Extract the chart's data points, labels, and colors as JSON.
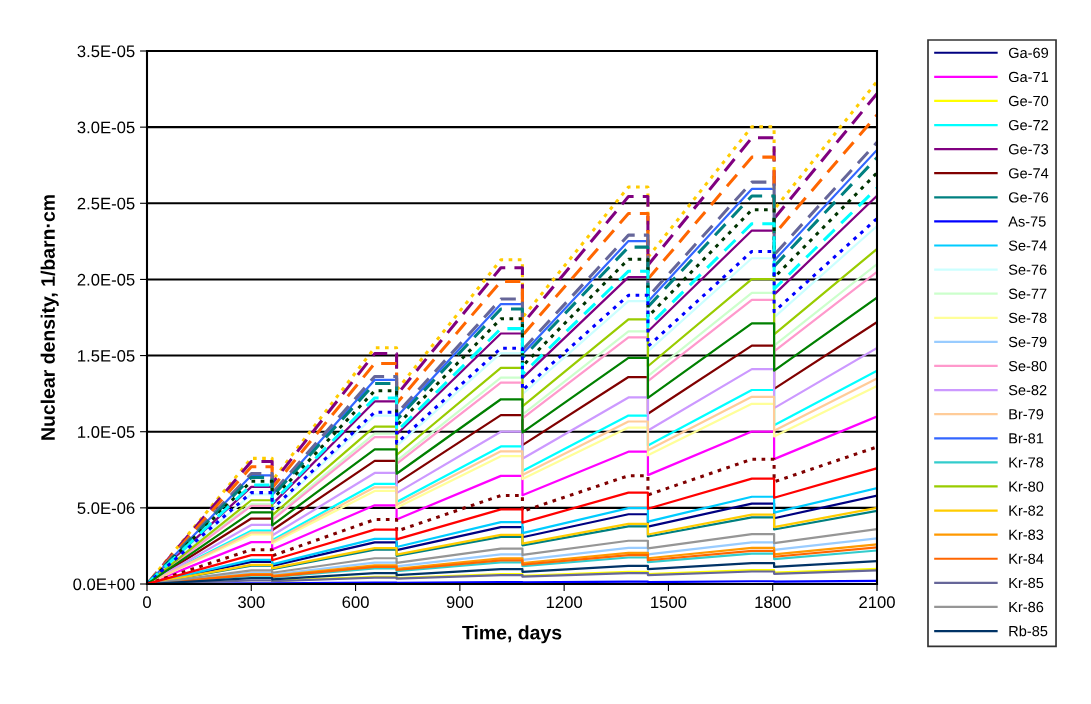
{
  "chart_data": {
    "type": "line",
    "xlabel": "Time, days",
    "ylabel": "Nuclear density, 1/barn·cm",
    "x": [
      0,
      300,
      360,
      360,
      655,
      718,
      718,
      1018,
      1080,
      1080,
      1385,
      1441,
      1441,
      1740,
      1804,
      1804,
      2100
    ],
    "xlim": [
      0,
      2100
    ],
    "xticks": [
      0,
      300,
      600,
      900,
      1200,
      1500,
      1800,
      2100
    ],
    "ylim": [
      0,
      3.5e-05
    ],
    "yticks": [
      {
        "value": 0,
        "label": "0.0E+00"
      },
      {
        "value": 5e-06,
        "label": "5.0E-06"
      },
      {
        "value": 1e-05,
        "label": "1.0E-05"
      },
      {
        "value": 1.5e-05,
        "label": "1.5E-05"
      },
      {
        "value": 2e-05,
        "label": "2.0E-05"
      },
      {
        "value": 2.5e-05,
        "label": "2.5E-05"
      },
      {
        "value": 3e-05,
        "label": "3.0E-05"
      },
      {
        "value": 3.5e-05,
        "label": "3.5E-05"
      }
    ],
    "grid": "y",
    "legend": "right",
    "marker": "none",
    "series": [
      {
        "name": "Ga-69",
        "color": "#000080",
        "line_style": "solid",
        "values": [
          0,
          1.45e-06,
          1.45e-06,
          1.19e-06,
          2.73e-06,
          2.73e-06,
          2.23e-06,
          3.74e-06,
          3.74e-06,
          3.07e-06,
          4.58e-06,
          4.58e-06,
          3.77e-06,
          5.28e-06,
          5.28e-06,
          4.32e-06,
          5.8e-06
        ]
      },
      {
        "name": "Ga-71",
        "color": "#ff00ff",
        "line_style": "solid",
        "values": [
          0,
          2.75e-06,
          2.75e-06,
          2.26e-06,
          5.17e-06,
          5.17e-06,
          4.24e-06,
          7.1e-06,
          7.1e-06,
          5.83e-06,
          8.69e-06,
          8.69e-06,
          7.15e-06,
          1.001e-05,
          1.001e-05,
          8.2e-06,
          1.1e-05
        ]
      },
      {
        "name": "Ge-70",
        "color": "#ffff00",
        "line_style": "solid",
        "values": [
          null,
          null,
          null,
          2e-07,
          4.7e-07,
          4.7e-07,
          3.9e-07,
          6.5e-07,
          6.5e-07,
          5.3e-07,
          7.9e-07,
          7.9e-07,
          6.5e-07,
          9.1e-07,
          9.1e-07,
          7.5e-07,
          1e-06
        ]
      },
      {
        "name": "Ge-72",
        "color": "#00ffff",
        "line_style": "solid",
        "values": [
          0,
          3.5e-06,
          3.5e-06,
          2.87e-06,
          6.58e-06,
          6.58e-06,
          5.39e-06,
          9.03e-06,
          9.03e-06,
          7.42e-06,
          1.106e-05,
          1.106e-05,
          9.1e-06,
          1.274e-05,
          1.274e-05,
          1.043e-05,
          1.4e-05
        ]
      },
      {
        "name": "Ge-73",
        "color": "#800080",
        "line_style": "solid",
        "values": [
          0,
          6.38e-06,
          6.38e-06,
          5.23e-06,
          1.199e-05,
          1.199e-05,
          9.82e-06,
          1.645e-05,
          1.645e-05,
          1.352e-05,
          2.015e-05,
          2.015e-05,
          1.658e-05,
          2.321e-05,
          2.321e-05,
          1.9e-05,
          2.55e-05
        ]
      },
      {
        "name": "Ge-74",
        "color": "#800000",
        "line_style": "solid",
        "values": [
          0,
          4.3e-06,
          4.3e-06,
          3.53e-06,
          8.08e-06,
          8.08e-06,
          6.62e-06,
          1.109e-05,
          1.109e-05,
          9.12e-06,
          1.359e-05,
          1.359e-05,
          1.118e-05,
          1.565e-05,
          1.565e-05,
          1.281e-05,
          1.72e-05
        ]
      },
      {
        "name": "Ge-76",
        "color": "#008080",
        "line_style": "solid",
        "values": [
          0,
          1.2e-06,
          1.2e-06,
          9.8e-07,
          2.26e-06,
          2.26e-06,
          1.85e-06,
          3.1e-06,
          3.1e-06,
          2.54e-06,
          3.79e-06,
          3.79e-06,
          3.12e-06,
          4.37e-06,
          4.37e-06,
          3.58e-06,
          4.8e-06
        ]
      },
      {
        "name": "As-75",
        "color": "#0000ff",
        "line_style": "solid",
        "values": [
          0,
          5e-08,
          5e-08,
          4e-08,
          9e-08,
          9e-08,
          8e-08,
          1.3e-07,
          1.3e-07,
          1.1e-07,
          1.6e-07,
          1.6e-07,
          1.3e-07,
          1.8e-07,
          1.8e-07,
          1.5e-07,
          2e-07
        ]
      },
      {
        "name": "Se-74",
        "color": "#00ccff",
        "line_style": "solid",
        "values": [
          0,
          1.58e-06,
          1.58e-06,
          1.29e-06,
          2.96e-06,
          2.96e-06,
          2.43e-06,
          4.06e-06,
          4.06e-06,
          3.34e-06,
          4.98e-06,
          4.98e-06,
          4.1e-06,
          5.73e-06,
          5.73e-06,
          4.69e-06,
          6.3e-06
        ]
      },
      {
        "name": "Se-76",
        "color": "#ccffff",
        "line_style": "solid",
        "values": [
          0,
          5.88e-06,
          5.88e-06,
          4.82e-06,
          1.105e-05,
          1.105e-05,
          9.05e-06,
          1.516e-05,
          1.516e-05,
          1.246e-05,
          1.857e-05,
          1.857e-05,
          1.528e-05,
          2.139e-05,
          2.139e-05,
          1.751e-05,
          2.35e-05
        ]
      },
      {
        "name": "Se-77",
        "color": "#ccffcc",
        "line_style": "solid",
        "values": [
          0,
          5.25e-06,
          5.25e-06,
          4.31e-06,
          9.87e-06,
          9.87e-06,
          8.09e-06,
          1.355e-05,
          1.355e-05,
          1.113e-05,
          1.659e-05,
          1.659e-05,
          1.365e-05,
          1.911e-05,
          1.911e-05,
          1.565e-05,
          2.1e-05
        ]
      },
      {
        "name": "Se-78",
        "color": "#ffff99",
        "line_style": "solid",
        "values": [
          0,
          3.25e-06,
          3.25e-06,
          2.67e-06,
          6.11e-06,
          6.11e-06,
          5.01e-06,
          8.39e-06,
          8.39e-06,
          6.89e-06,
          1.027e-05,
          1.027e-05,
          8.45e-06,
          1.183e-05,
          1.183e-05,
          9.69e-06,
          1.3e-05
        ]
      },
      {
        "name": "Se-79",
        "color": "#99ccff",
        "line_style": "solid",
        "values": [
          0,
          7.5e-07,
          7.5e-07,
          6.2e-07,
          1.41e-06,
          1.41e-06,
          1.16e-06,
          1.94e-06,
          1.94e-06,
          1.59e-06,
          2.37e-06,
          2.37e-06,
          1.95e-06,
          2.73e-06,
          2.73e-06,
          2.24e-06,
          3e-06
        ]
      },
      {
        "name": "Se-80",
        "color": "#ff99cc",
        "line_style": "solid",
        "values": [
          0,
          5.13e-06,
          5.13e-06,
          4.2e-06,
          9.64e-06,
          9.64e-06,
          7.89e-06,
          1.322e-05,
          1.322e-05,
          1.087e-05,
          1.62e-05,
          1.62e-05,
          1.333e-05,
          1.866e-05,
          1.866e-05,
          1.527e-05,
          2.05e-05
        ]
      },
      {
        "name": "Se-82",
        "color": "#cc99ff",
        "line_style": "solid",
        "values": [
          0,
          3.88e-06,
          3.88e-06,
          3.18e-06,
          7.29e-06,
          7.29e-06,
          5.97e-06,
          1e-05,
          1e-05,
          8.22e-06,
          1.225e-05,
          1.225e-05,
          1.008e-05,
          1.411e-05,
          1.411e-05,
          1.155e-05,
          1.55e-05
        ]
      },
      {
        "name": "Br-79",
        "color": "#ffcc99",
        "line_style": "solid",
        "values": [
          0,
          3.38e-06,
          3.38e-06,
          2.77e-06,
          6.35e-06,
          6.35e-06,
          5.2e-06,
          8.71e-06,
          8.71e-06,
          7.16e-06,
          1.067e-05,
          1.067e-05,
          8.78e-06,
          1.229e-05,
          1.229e-05,
          1.006e-05,
          1.35e-05
        ]
      },
      {
        "name": "Br-81",
        "color": "#3366ff",
        "line_style": "solid",
        "values": [
          0,
          7.13e-06,
          7.13e-06,
          5.84e-06,
          1.34e-05,
          1.34e-05,
          1.097e-05,
          1.838e-05,
          1.838e-05,
          1.511e-05,
          2.252e-05,
          2.252e-05,
          1.853e-05,
          2.594e-05,
          2.594e-05,
          2.123e-05,
          2.85e-05
        ]
      },
      {
        "name": "Kr-78",
        "color": "#33cccc",
        "line_style": "solid",
        "values": [
          0,
          5.5e-07,
          5.5e-07,
          4.5e-07,
          1.03e-06,
          1.03e-06,
          8.5e-07,
          1.42e-06,
          1.42e-06,
          1.17e-06,
          1.74e-06,
          1.74e-06,
          1.43e-06,
          2e-06,
          2e-06,
          1.64e-06,
          2.2e-06
        ]
      },
      {
        "name": "Kr-80",
        "color": "#99cc00",
        "line_style": "solid",
        "values": [
          0,
          5.5e-06,
          5.5e-06,
          4.51e-06,
          1.034e-05,
          1.034e-05,
          8.47e-06,
          1.419e-05,
          1.419e-05,
          1.166e-05,
          1.738e-05,
          1.738e-05,
          1.43e-05,
          2.002e-05,
          2.002e-05,
          1.639e-05,
          2.2e-05
        ]
      },
      {
        "name": "Kr-82",
        "color": "#ffcc00",
        "line_style": "solid",
        "values": [
          0,
          1.25e-06,
          1.25e-06,
          1.03e-06,
          2.35e-06,
          2.35e-06,
          1.93e-06,
          3.23e-06,
          3.23e-06,
          2.65e-06,
          3.95e-06,
          3.95e-06,
          3.25e-06,
          4.55e-06,
          4.55e-06,
          3.73e-06,
          5e-06
        ]
      },
      {
        "name": "Kr-83",
        "color": "#ff9900",
        "line_style": "solid",
        "values": [
          0,
          6.5e-07,
          6.5e-07,
          5.3e-07,
          1.22e-06,
          1.22e-06,
          1e-06,
          1.68e-06,
          1.68e-06,
          1.38e-06,
          2.05e-06,
          2.05e-06,
          1.69e-06,
          2.37e-06,
          2.37e-06,
          1.94e-06,
          2.6e-06
        ]
      },
      {
        "name": "Kr-84",
        "color": "#ff6600",
        "line_style": "solid",
        "values": [
          0,
          6e-07,
          6e-07,
          4.9e-07,
          1.13e-06,
          1.13e-06,
          9.2e-07,
          1.55e-06,
          1.55e-06,
          1.27e-06,
          1.9e-06,
          1.9e-06,
          1.56e-06,
          2.18e-06,
          2.18e-06,
          1.79e-06,
          2.4e-06
        ]
      },
      {
        "name": "Kr-85",
        "color": "#666699",
        "line_style": "solid",
        "values": [
          0,
          2.3e-07,
          2.3e-07,
          1.8e-07,
          4.2e-07,
          4.2e-07,
          3.5e-07,
          5.8e-07,
          5.8e-07,
          4.8e-07,
          7.1e-07,
          7.1e-07,
          5.9e-07,
          8.2e-07,
          8.2e-07,
          6.7e-07,
          9e-07
        ]
      },
      {
        "name": "Kr-86",
        "color": "#969696",
        "line_style": "solid",
        "values": [
          0,
          9e-07,
          9e-07,
          7.4e-07,
          1.69e-06,
          1.69e-06,
          1.39e-06,
          2.32e-06,
          2.32e-06,
          1.91e-06,
          2.84e-06,
          2.84e-06,
          2.34e-06,
          3.28e-06,
          3.28e-06,
          2.68e-06,
          3.6e-06
        ]
      },
      {
        "name": "Rb-85",
        "color": "#003366",
        "line_style": "solid",
        "values": [
          0,
          3.8e-07,
          3.8e-07,
          3.1e-07,
          7.1e-07,
          7.1e-07,
          5.8e-07,
          9.7e-07,
          9.7e-07,
          8e-07,
          1.19e-06,
          1.19e-06,
          9.8e-07,
          1.37e-06,
          1.37e-06,
          1.12e-06,
          1.5e-06
        ]
      },
      {
        "color": "#ffcc00",
        "line_style": "dotted",
        "values": [
          0,
          8.25e-06,
          8.25e-06,
          6.77e-06,
          1.551e-05,
          1.551e-05,
          1.271e-05,
          2.129e-05,
          2.129e-05,
          1.749e-05,
          2.607e-05,
          2.607e-05,
          2.145e-05,
          3.003e-05,
          3.003e-05,
          2.459e-05,
          3.3e-05
        ]
      },
      {
        "color": "#800080",
        "line_style": "dashed",
        "values": [
          0,
          8.05e-06,
          8.05e-06,
          6.6e-06,
          1.513e-05,
          1.513e-05,
          1.24e-05,
          2.077e-05,
          2.077e-05,
          1.707e-05,
          2.544e-05,
          2.544e-05,
          2.093e-05,
          2.93e-05,
          2.93e-05,
          2.399e-05,
          3.22e-05
        ]
      },
      {
        "color": "#ff6600",
        "line_style": "dashed",
        "values": [
          0,
          7.7e-06,
          7.7e-06,
          6.31e-06,
          1.448e-05,
          1.448e-05,
          1.186e-05,
          1.987e-05,
          1.987e-05,
          1.632e-05,
          2.433e-05,
          2.433e-05,
          2.002e-05,
          2.803e-05,
          2.803e-05,
          2.295e-05,
          3.08e-05
        ]
      },
      {
        "color": "#666699",
        "line_style": "dashed",
        "values": [
          0,
          7.25e-06,
          7.25e-06,
          5.95e-06,
          1.363e-05,
          1.363e-05,
          1.117e-05,
          1.871e-05,
          1.871e-05,
          1.537e-05,
          2.291e-05,
          2.291e-05,
          1.885e-05,
          2.639e-05,
          2.639e-05,
          2.161e-05,
          2.9e-05
        ]
      },
      {
        "color": "#008080",
        "line_style": "dashed",
        "values": [
          0,
          7e-06,
          7e-06,
          5.74e-06,
          1.316e-05,
          1.316e-05,
          1.078e-05,
          1.806e-05,
          1.806e-05,
          1.484e-05,
          2.212e-05,
          2.212e-05,
          1.82e-05,
          2.548e-05,
          2.548e-05,
          2.086e-05,
          2.8e-05
        ]
      },
      {
        "color": "#003300",
        "line_style": "dotted",
        "values": [
          0,
          6.75e-06,
          6.75e-06,
          5.54e-06,
          1.269e-05,
          1.269e-05,
          1.04e-05,
          1.742e-05,
          1.742e-05,
          1.431e-05,
          2.133e-05,
          2.133e-05,
          1.755e-05,
          2.457e-05,
          2.457e-05,
          2.012e-05,
          2.7e-05
        ]
      },
      {
        "color": "#00ffff",
        "line_style": "dashed",
        "values": [
          0,
          6.5e-06,
          6.5e-06,
          5.33e-06,
          1.222e-05,
          1.222e-05,
          1.001e-05,
          1.677e-05,
          1.677e-05,
          1.378e-05,
          2.054e-05,
          2.054e-05,
          1.69e-05,
          2.366e-05,
          2.366e-05,
          1.937e-05,
          2.6e-05
        ]
      },
      {
        "color": "#0000ff",
        "line_style": "dotted",
        "values": [
          0,
          6e-06,
          6e-06,
          4.92e-06,
          1.128e-05,
          1.128e-05,
          9.24e-06,
          1.548e-05,
          1.548e-05,
          1.272e-05,
          1.896e-05,
          1.896e-05,
          1.56e-05,
          2.184e-05,
          2.184e-05,
          1.788e-05,
          2.4e-05
        ]
      },
      {
        "color": "#008000",
        "line_style": "solid",
        "values": [
          0,
          4.7e-06,
          4.7e-06,
          3.85e-06,
          8.84e-06,
          8.84e-06,
          7.24e-06,
          1.213e-05,
          1.213e-05,
          9.96e-06,
          1.485e-05,
          1.485e-05,
          1.222e-05,
          1.711e-05,
          1.711e-05,
          1.401e-05,
          1.88e-05
        ]
      },
      {
        "color": "#800000",
        "line_style": "dotted",
        "values": [
          0,
          2.25e-06,
          2.25e-06,
          1.85e-06,
          4.23e-06,
          4.23e-06,
          3.47e-06,
          5.81e-06,
          5.81e-06,
          4.77e-06,
          7.11e-06,
          7.11e-06,
          5.85e-06,
          8.19e-06,
          8.19e-06,
          6.71e-06,
          9e-06
        ]
      },
      {
        "color": "#ff0000",
        "line_style": "solid",
        "values": [
          0,
          1.9e-06,
          1.9e-06,
          1.56e-06,
          3.57e-06,
          3.57e-06,
          2.93e-06,
          4.9e-06,
          4.9e-06,
          4.03e-06,
          6e-06,
          6e-06,
          4.94e-06,
          6.92e-06,
          6.92e-06,
          5.66e-06,
          7.6e-06
        ]
      }
    ]
  }
}
